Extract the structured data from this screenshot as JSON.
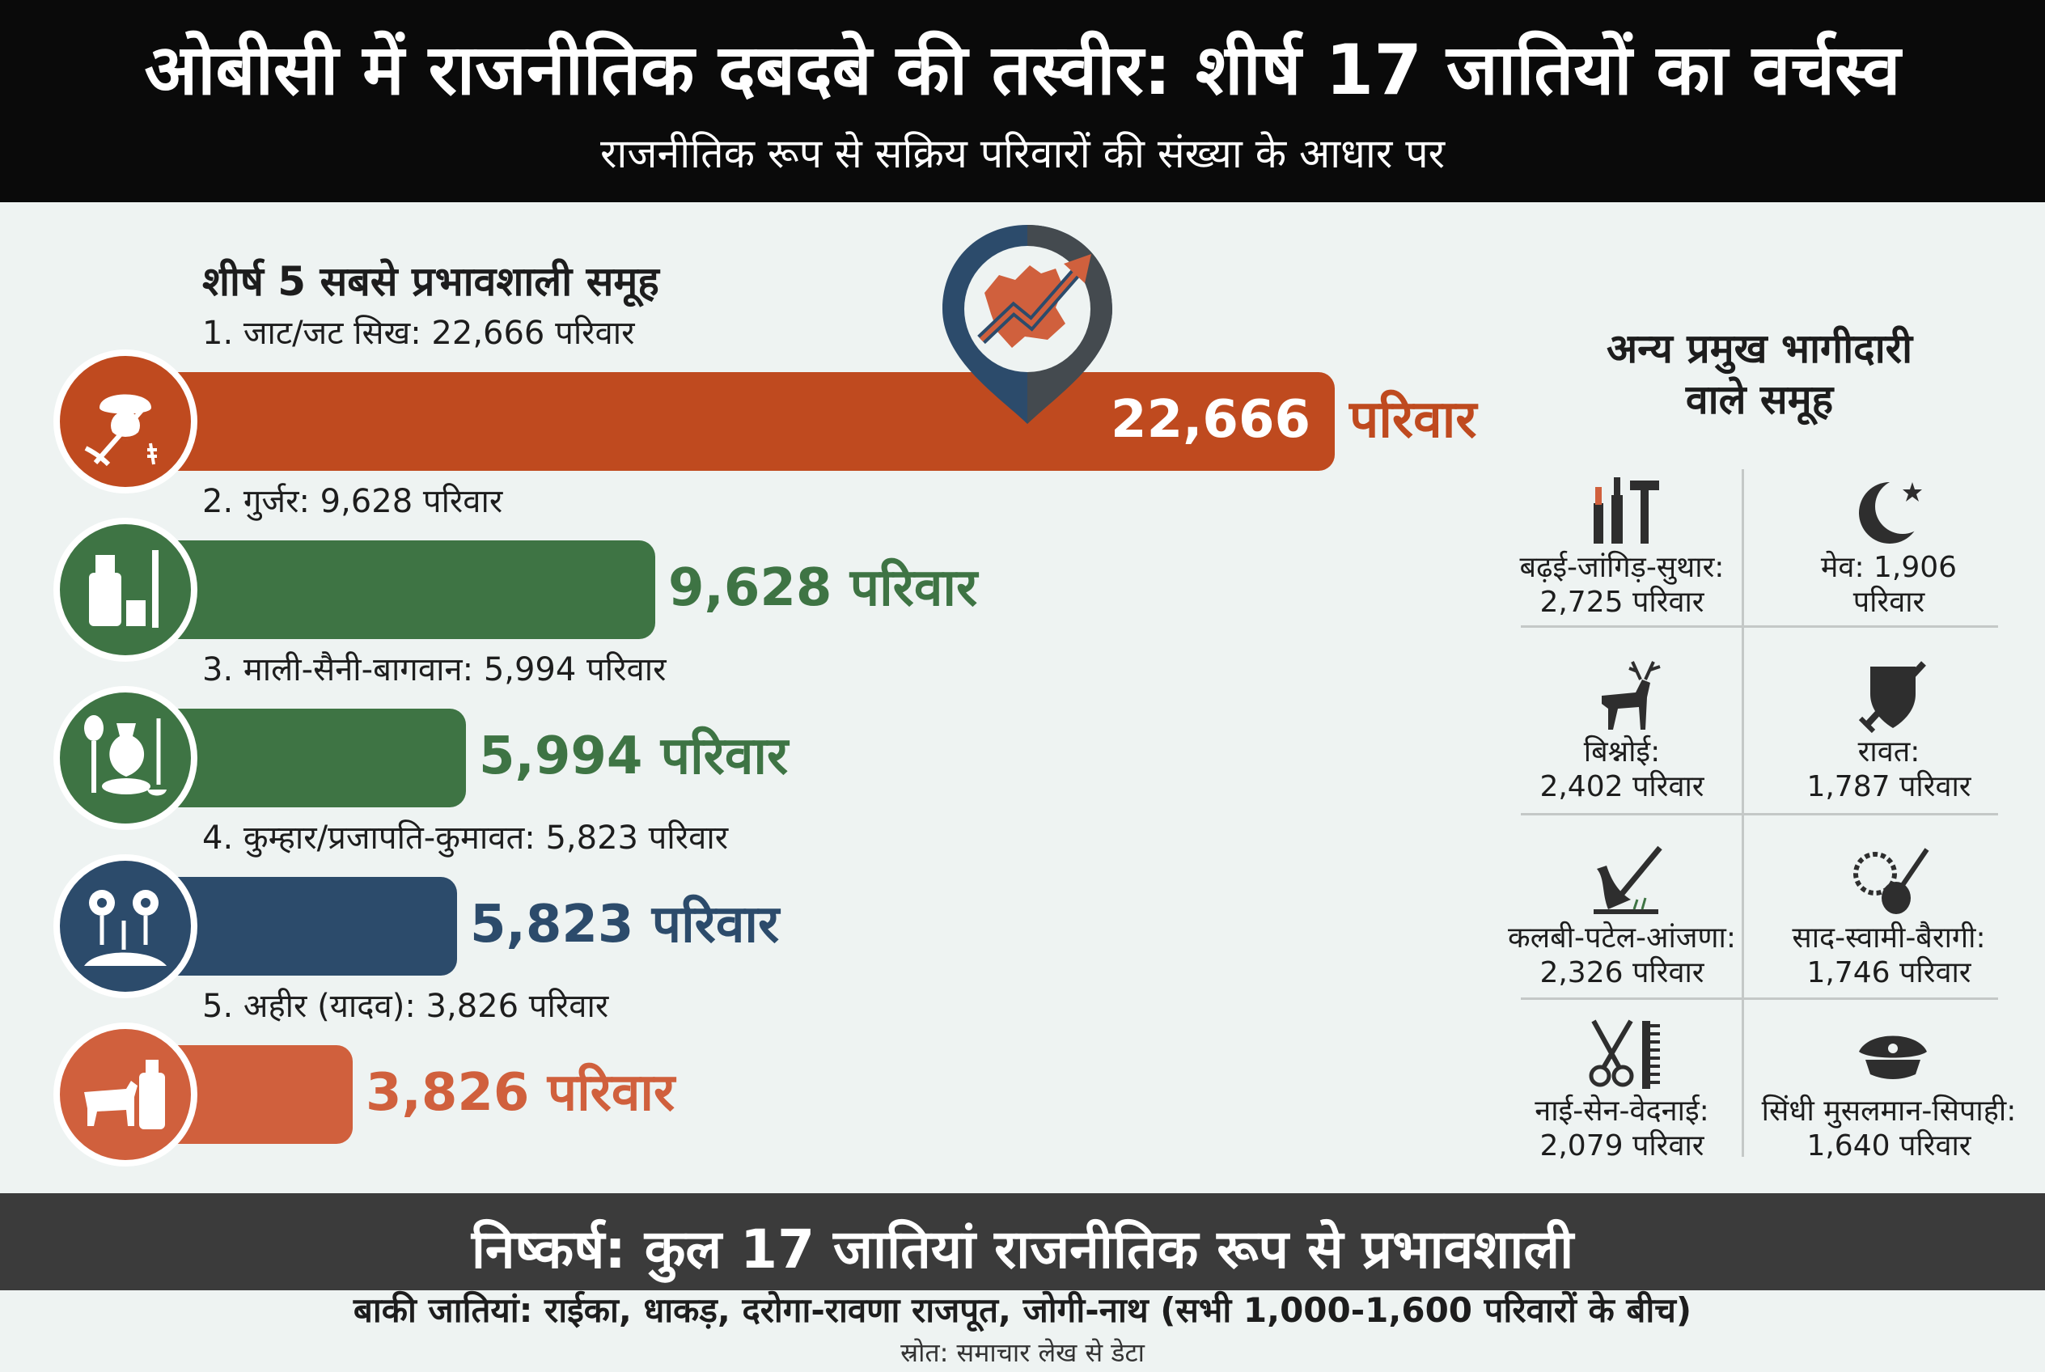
{
  "header": {
    "title": "ओबीसी में राजनीतिक दबदबे की तस्वीर: शीर्ष 17 जातियों का वर्चस्व",
    "subtitle": "राजनीतिक रूप से सक्रिय परिवारों की संख्या के आधार पर"
  },
  "section_title": "शीर्ष 5 सबसे प्रभावशाली समूह",
  "side_title_line1": "अन्य प्रमुख भागीदारी",
  "side_title_line2": "वाले समूह",
  "colors": {
    "orange": "#bf4a1f",
    "green": "#3e7444",
    "navy": "#2c4b6b",
    "salmon": "#d0603d",
    "dark": "#0a0a0a"
  },
  "chart_data": {
    "type": "bar",
    "orientation": "horizontal",
    "unit": "परिवार",
    "items": [
      {
        "label": "1. जाट/जट सिख: 22,666 परिवार",
        "value": 22666,
        "display": "22,666",
        "unit": "परिवार",
        "color": "#bf4a1f",
        "icon": "turban-farmer-icon",
        "value_inside": true
      },
      {
        "label": "2. गुर्जर: 9,628 परिवार",
        "value": 9628,
        "display": "9,628 परिवार",
        "color": "#3e7444",
        "icon": "milk-can-icon",
        "value_inside": false
      },
      {
        "label": "3. माली-सैनी-बागवान: 5,994 परिवार",
        "value": 5994,
        "display": "5,994 परिवार",
        "color": "#3e7444",
        "icon": "pottery-icon",
        "value_inside": false
      },
      {
        "label": "4. कुम्हार/प्रजापति-कुमावत: 5,823 परिवार",
        "value": 5823,
        "display": "5,823 परिवार",
        "color": "#2c4b6b",
        "icon": "flowers-icon",
        "value_inside": false
      },
      {
        "label": "5. अहीर (यादव): 3,826 परिवार",
        "value": 3826,
        "display": "3,826 परिवार",
        "color": "#d0603d",
        "icon": "cow-icon",
        "value_inside": false
      }
    ]
  },
  "other_groups": [
    {
      "name": "बढ़ई-जांगिड़-सुथार:",
      "value": "2,725 परिवार",
      "icon": "carpenter-tools-icon"
    },
    {
      "name": "मेव: 1,906",
      "value": "परिवार",
      "icon": "crescent-star-icon"
    },
    {
      "name": "बिश्नोई:",
      "value": "2,402 परिवार",
      "icon": "deer-icon"
    },
    {
      "name": "रावत:",
      "value": "1,787 परिवार",
      "icon": "shield-sword-icon"
    },
    {
      "name": "कलबी-पटेल-आंजणा:",
      "value": "2,326 परिवार",
      "icon": "plough-icon"
    },
    {
      "name": "साद-स्वामी-बैरागी:",
      "value": "1,746 परिवार",
      "icon": "rosary-instrument-icon"
    },
    {
      "name": "नाई-सेन-वेदनाई:",
      "value": "2,079 परिवार",
      "icon": "scissors-comb-icon"
    },
    {
      "name": "सिंधी मुसलमान-सिपाही:",
      "value": "1,640 परिवार",
      "icon": "police-cap-icon"
    }
  ],
  "footer": {
    "conclusion": "निष्कर्ष: कुल 17 जातियां राजनीतिक रूप से प्रभावशाली",
    "rest": "बाकी जातियां: राईका, धाकड़, दरोगा-रावणा राजपूत, जोगी-नाथ (सभी 1,000-1,600 परिवारों के बीच)",
    "source": "स्रोत: समाचार लेख से डेटा"
  }
}
